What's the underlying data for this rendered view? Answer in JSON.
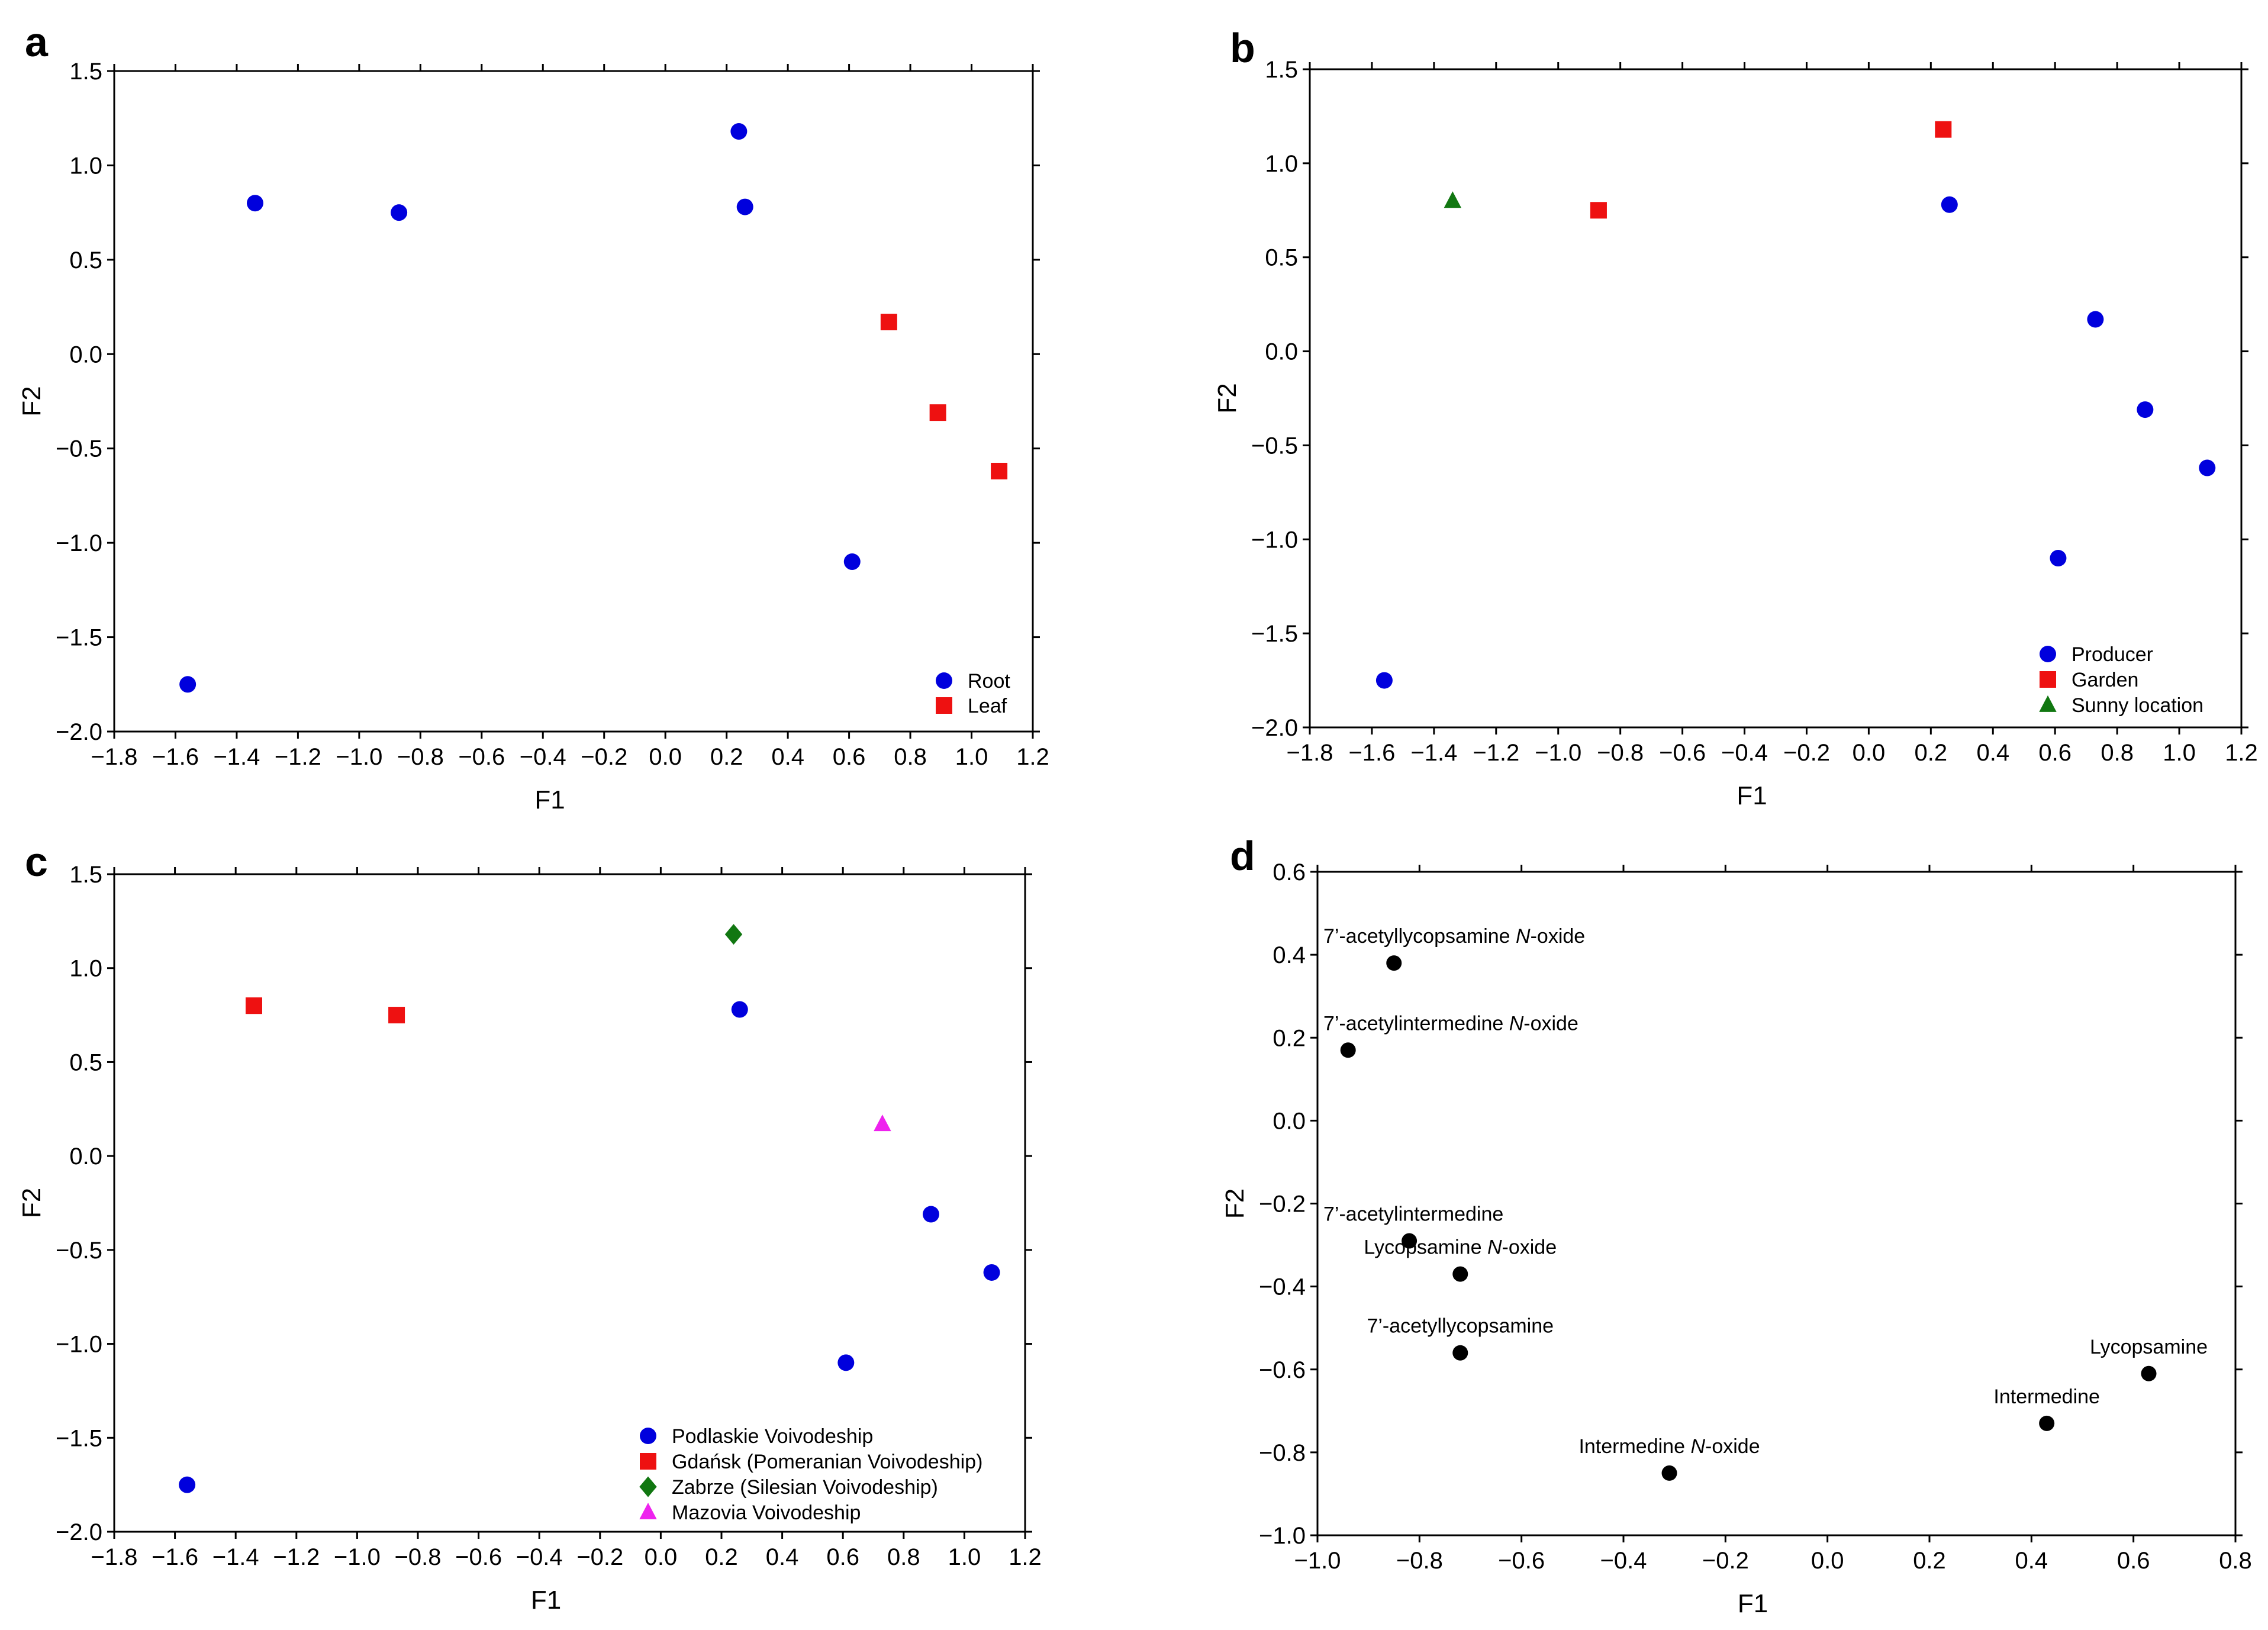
{
  "chart_data": [
    {
      "panel": "a",
      "type": "scatter",
      "xlabel": "F1",
      "ylabel": "F2",
      "xlim": [
        -1.8,
        1.2
      ],
      "ylim": [
        -2.0,
        1.5
      ],
      "x_ticks": [
        "-1.8",
        "-1.6",
        "-1.4",
        "-1.2",
        "-1.0",
        "-0.8",
        "-0.6",
        "-0.4",
        "-0.2",
        "0.0",
        "0.2",
        "0.4",
        "0.6",
        "0.8",
        "1.0",
        "1.2"
      ],
      "y_ticks": [
        "1.5",
        "1.0",
        "0.5",
        "0.0",
        "-0.5",
        "-1.0",
        "-1.5",
        "-2.0"
      ],
      "legend_position": "bottom-right",
      "series": [
        {
          "name": "Root",
          "marker": "circle",
          "color": "#0000dd",
          "points": [
            [
              -1.34,
              0.8
            ],
            [
              -0.87,
              0.75
            ],
            [
              0.24,
              1.18
            ],
            [
              0.26,
              0.78
            ],
            [
              0.61,
              -1.1
            ],
            [
              -1.56,
              -1.75
            ]
          ]
        },
        {
          "name": "Leaf",
          "marker": "square",
          "color": "#ee1111",
          "points": [
            [
              0.73,
              0.17
            ],
            [
              0.89,
              -0.31
            ],
            [
              1.09,
              -0.62
            ]
          ]
        }
      ]
    },
    {
      "panel": "b",
      "type": "scatter",
      "xlabel": "F1",
      "ylabel": "F2",
      "xlim": [
        -1.8,
        1.2
      ],
      "ylim": [
        -2.0,
        1.5
      ],
      "x_ticks": [
        "-1.8",
        "-1.6",
        "-1.4",
        "-1.2",
        "-1.0",
        "-0.8",
        "-0.6",
        "-0.4",
        "-0.2",
        "0.0",
        "0.2",
        "0.4",
        "0.6",
        "0.8",
        "1.0",
        "1.2"
      ],
      "y_ticks": [
        "1.5",
        "1.0",
        "0.5",
        "0.0",
        "-0.5",
        "-1.0",
        "-1.5",
        "-2.0"
      ],
      "legend_position": "bottom-right",
      "series": [
        {
          "name": "Producer",
          "marker": "circle",
          "color": "#0000dd",
          "points": [
            [
              0.26,
              0.78
            ],
            [
              0.73,
              0.17
            ],
            [
              0.89,
              -0.31
            ],
            [
              1.09,
              -0.62
            ],
            [
              0.61,
              -1.1
            ],
            [
              -1.56,
              -1.75
            ]
          ]
        },
        {
          "name": "Garden",
          "marker": "square",
          "color": "#ee1111",
          "points": [
            [
              -0.87,
              0.75
            ],
            [
              0.24,
              1.18
            ]
          ]
        },
        {
          "name": "Sunny location",
          "marker": "triangle",
          "color": "#117711",
          "points": [
            [
              -1.34,
              0.8
            ]
          ]
        }
      ]
    },
    {
      "panel": "c",
      "type": "scatter",
      "xlabel": "F1",
      "ylabel": "F2",
      "xlim": [
        -1.8,
        1.2
      ],
      "ylim": [
        -2.0,
        1.5
      ],
      "x_ticks": [
        "-1.8",
        "-1.6",
        "-1.4",
        "-1.2",
        "-1.0",
        "-0.8",
        "-0.6",
        "-0.4",
        "-0.2",
        "0.0",
        "0.2",
        "0.4",
        "0.6",
        "0.8",
        "1.0",
        "1.2"
      ],
      "y_ticks": [
        "1.5",
        "1.0",
        "0.5",
        "0.0",
        "-0.5",
        "-1.0",
        "-1.5",
        "-2.0"
      ],
      "legend_position": "bottom-right",
      "series": [
        {
          "name": "Podlaskie Voivodeship",
          "marker": "circle",
          "color": "#0000dd",
          "points": [
            [
              0.26,
              0.78
            ],
            [
              0.89,
              -0.31
            ],
            [
              1.09,
              -0.62
            ],
            [
              0.61,
              -1.1
            ],
            [
              -1.56,
              -1.75
            ]
          ]
        },
        {
          "name": "Gdańsk (Pomeranian Voivodeship)",
          "marker": "square",
          "color": "#ee1111",
          "points": [
            [
              -1.34,
              0.8
            ],
            [
              -0.87,
              0.75
            ]
          ]
        },
        {
          "name": "Zabrze (Silesian Voivodeship)",
          "marker": "diamond",
          "color": "#117711",
          "points": [
            [
              0.24,
              1.18
            ]
          ]
        },
        {
          "name": "Mazovia Voivodeship",
          "marker": "triangle",
          "color": "#ee22ee",
          "points": [
            [
              0.73,
              0.17
            ]
          ]
        }
      ]
    },
    {
      "panel": "d",
      "type": "scatter",
      "xlabel": "F1",
      "ylabel": "F2",
      "xlim": [
        -1.0,
        0.8
      ],
      "ylim": [
        -1.0,
        0.6
      ],
      "x_ticks": [
        "-1.0",
        "-0.8",
        "-0.6",
        "-0.4",
        "-0.2",
        "0.0",
        "0.2",
        "0.4",
        "0.6",
        "0.8"
      ],
      "y_ticks": [
        "0.6",
        "0.4",
        "0.2",
        "0.0",
        "-0.2",
        "-0.4",
        "-0.6",
        "-0.8",
        "-1.0"
      ],
      "series": [
        {
          "marker": "circle",
          "color": "#000000",
          "points": [
            {
              "x": -0.85,
              "y": 0.38,
              "label": "7’-acetyllycopsamine ",
              "label_italic": "N",
              "label_tail": "-oxide"
            },
            {
              "x": -0.94,
              "y": 0.17,
              "label": "7’-acetylintermedine ",
              "label_italic": "N",
              "label_tail": "-oxide"
            },
            {
              "x": -0.82,
              "y": -0.29,
              "label": "7’-acetylintermedine",
              "label_italic": "",
              "label_tail": ""
            },
            {
              "x": -0.72,
              "y": -0.37,
              "label": "Lycopsamine ",
              "label_italic": "N",
              "label_tail": "-oxide"
            },
            {
              "x": -0.72,
              "y": -0.56,
              "label": "7’-acetyllycopsamine",
              "label_italic": "",
              "label_tail": ""
            },
            {
              "x": 0.63,
              "y": -0.61,
              "label": "Lycopsamine",
              "label_italic": "",
              "label_tail": ""
            },
            {
              "x": 0.43,
              "y": -0.73,
              "label": "Intermedine",
              "label_italic": "",
              "label_tail": ""
            },
            {
              "x": -0.31,
              "y": -0.85,
              "label": "Intermedine ",
              "label_italic": "N",
              "label_tail": "-oxide"
            }
          ]
        }
      ]
    }
  ]
}
